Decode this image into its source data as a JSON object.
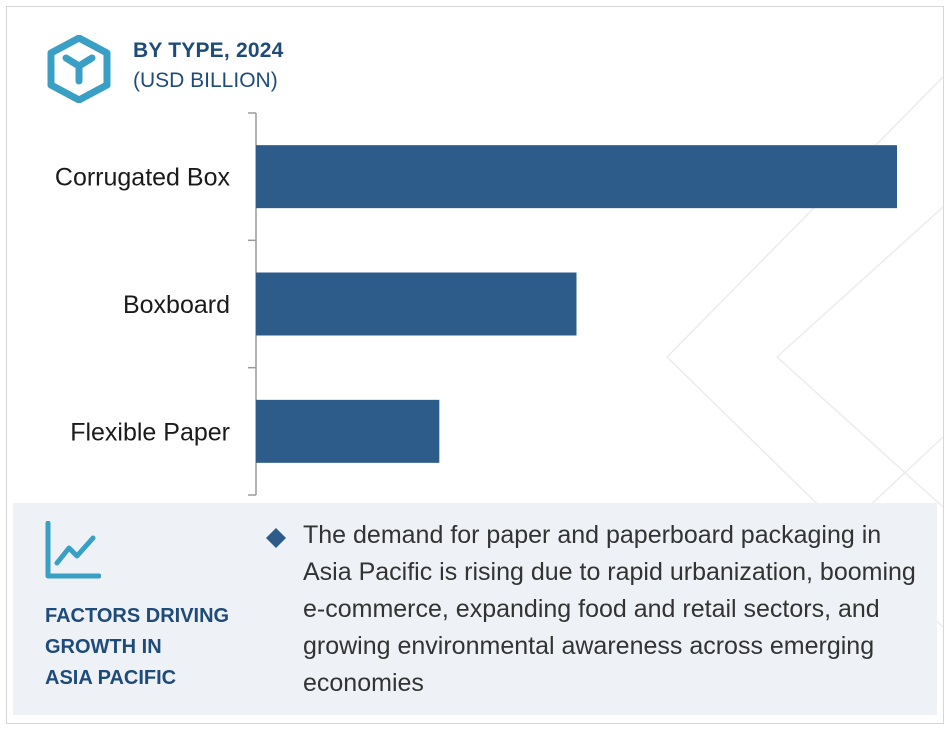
{
  "header": {
    "title": "BY TYPE, 2024",
    "subtitle": "(USD BILLION)"
  },
  "icons": {
    "logo": "hexagon-cube-icon",
    "trend": "line-chart-trend-icon",
    "bullet": "diamond-bullet-icon"
  },
  "colors": {
    "bar": "#2e5c8a",
    "heading": "#1f4b7a",
    "accent": "#3a9fc4",
    "panel_bg": "#eef1f5"
  },
  "chart_data": {
    "type": "bar",
    "orientation": "horizontal",
    "categories": [
      "Corrugated Box",
      "Boxboard",
      "Flexible Paper"
    ],
    "values": [
      100,
      50,
      28.6
    ],
    "title": "BY TYPE, 2024",
    "subtitle": "(USD BILLION)",
    "xlim": [
      0,
      100
    ],
    "grid": false
  },
  "factors": {
    "title": "FACTORS DRIVING\nGROWTH IN\nASIA PACIFIC",
    "text": "The demand for paper and paperboard packaging in Asia Pacific is rising due to rapid urbanization, booming e-commerce, expanding food and retail sectors, and growing environmental awareness across emerging economies"
  }
}
